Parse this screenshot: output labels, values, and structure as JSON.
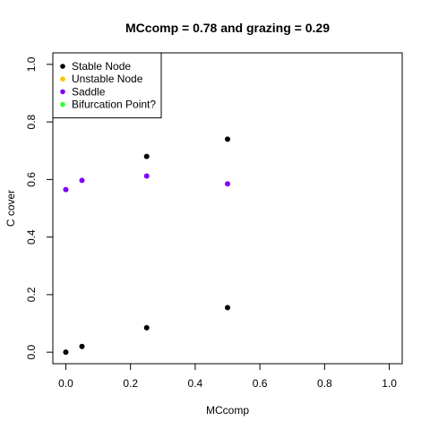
{
  "chart_data": {
    "type": "scatter",
    "title": "MCcomp =  0.78 and grazing = 0.29",
    "xlabel": "MCcomp",
    "ylabel": "C cover",
    "xlim": [
      -0.04,
      1.04
    ],
    "ylim": [
      -0.04,
      1.04
    ],
    "xticks": [
      0.0,
      0.2,
      0.4,
      0.6,
      0.8,
      1.0
    ],
    "yticks": [
      0.0,
      0.2,
      0.4,
      0.6,
      0.8,
      1.0
    ],
    "xtick_labels": [
      "0.0",
      "0.2",
      "0.4",
      "0.6",
      "0.8",
      "1.0"
    ],
    "ytick_labels": [
      "0.0",
      "0.2",
      "0.4",
      "0.6",
      "0.8",
      "1.0"
    ],
    "grid": false,
    "legend_position": "top-left",
    "series": [
      {
        "name": "Stable Node",
        "color": "#000000",
        "points": [
          {
            "x": 0.0,
            "y": 0.0
          },
          {
            "x": 0.05,
            "y": 0.02
          },
          {
            "x": 0.25,
            "y": 0.085
          },
          {
            "x": 0.25,
            "y": 0.68
          },
          {
            "x": 0.5,
            "y": 0.155
          },
          {
            "x": 0.5,
            "y": 0.74
          }
        ]
      },
      {
        "name": "Unstable Node",
        "color": "#FFC000",
        "points": []
      },
      {
        "name": "Saddle",
        "color": "#8000FF",
        "points": [
          {
            "x": 0.0,
            "y": 0.565
          },
          {
            "x": 0.05,
            "y": 0.597
          },
          {
            "x": 0.25,
            "y": 0.612
          },
          {
            "x": 0.5,
            "y": 0.585
          }
        ]
      },
      {
        "name": "Bifurcation Point?",
        "color": "#33FF33",
        "points": []
      }
    ]
  }
}
